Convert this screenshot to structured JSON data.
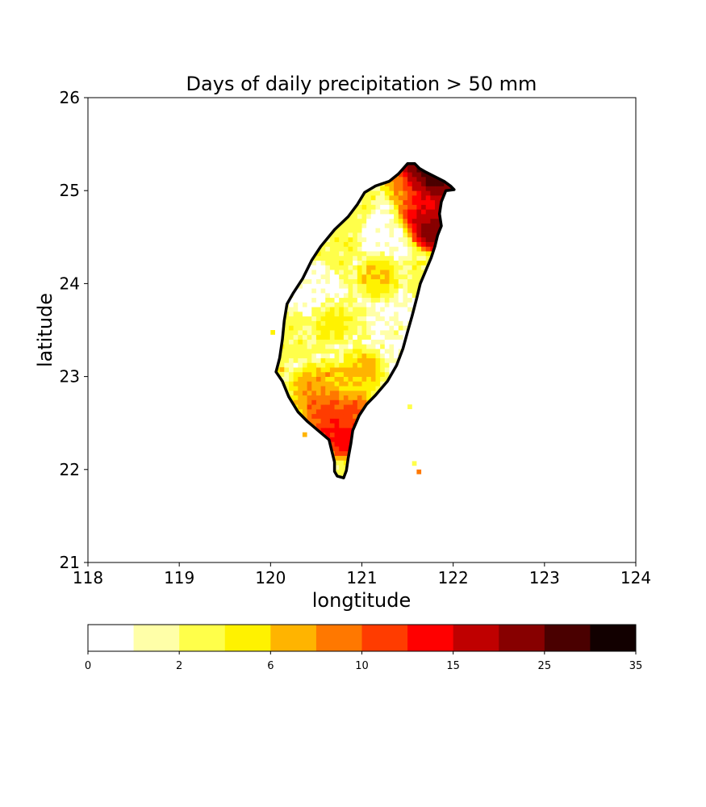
{
  "chart_data": {
    "type": "heatmap",
    "title": "Days of daily precipitation > 50 mm",
    "xlabel": "longtitude",
    "ylabel": "latitude",
    "xlim": [
      118,
      124
    ],
    "ylim": [
      21,
      26
    ],
    "x_ticks": [
      "118",
      "119",
      "120",
      "121",
      "122",
      "123",
      "124"
    ],
    "y_ticks": [
      "21",
      "22",
      "23",
      "24",
      "25",
      "26"
    ],
    "colorbar": {
      "levels": [
        0,
        1,
        2,
        4,
        6,
        8,
        10,
        12.5,
        15,
        20,
        25,
        30,
        35
      ],
      "tick_labels": [
        "0",
        "2",
        "6",
        "10",
        "15",
        "25",
        "35"
      ],
      "tick_values": [
        0,
        2,
        6,
        10,
        15,
        25,
        35
      ],
      "colors": [
        "#ffffff",
        "#ffffa8",
        "#ffff4a",
        "#fff200",
        "#ffb400",
        "#ff7800",
        "#ff3c00",
        "#ff0000",
        "#bf0000",
        "#870000",
        "#4a0000",
        "#120000"
      ]
    },
    "coastline": [
      [
        121.5,
        25.29
      ],
      [
        121.58,
        25.29
      ],
      [
        121.63,
        25.24
      ],
      [
        121.7,
        25.2
      ],
      [
        121.8,
        25.15
      ],
      [
        121.9,
        25.1
      ],
      [
        121.97,
        25.05
      ],
      [
        122.01,
        25.01
      ],
      [
        121.92,
        25.0
      ],
      [
        121.87,
        24.88
      ],
      [
        121.85,
        24.75
      ],
      [
        121.87,
        24.62
      ],
      [
        121.83,
        24.52
      ],
      [
        121.8,
        24.4
      ],
      [
        121.76,
        24.28
      ],
      [
        121.7,
        24.14
      ],
      [
        121.64,
        24.0
      ],
      [
        121.6,
        23.84
      ],
      [
        121.55,
        23.65
      ],
      [
        121.5,
        23.48
      ],
      [
        121.45,
        23.3
      ],
      [
        121.38,
        23.12
      ],
      [
        121.28,
        22.95
      ],
      [
        121.15,
        22.8
      ],
      [
        121.05,
        22.7
      ],
      [
        120.97,
        22.58
      ],
      [
        120.9,
        22.42
      ],
      [
        120.88,
        22.28
      ],
      [
        120.85,
        22.12
      ],
      [
        120.83,
        21.99
      ],
      [
        120.8,
        21.91
      ],
      [
        120.73,
        21.93
      ],
      [
        120.7,
        21.98
      ],
      [
        120.7,
        22.08
      ],
      [
        120.67,
        22.2
      ],
      [
        120.64,
        22.32
      ],
      [
        120.52,
        22.42
      ],
      [
        120.4,
        22.52
      ],
      [
        120.3,
        22.62
      ],
      [
        120.2,
        22.78
      ],
      [
        120.13,
        22.95
      ],
      [
        120.06,
        23.05
      ],
      [
        120.1,
        23.2
      ],
      [
        120.13,
        23.4
      ],
      [
        120.15,
        23.6
      ],
      [
        120.18,
        23.78
      ],
      [
        120.25,
        23.9
      ],
      [
        120.35,
        24.05
      ],
      [
        120.45,
        24.25
      ],
      [
        120.55,
        24.4
      ],
      [
        120.7,
        24.58
      ],
      [
        120.85,
        24.72
      ],
      [
        120.95,
        24.85
      ],
      [
        121.03,
        24.98
      ],
      [
        121.15,
        25.05
      ],
      [
        121.3,
        25.1
      ],
      [
        121.4,
        25.18
      ]
    ],
    "hotspots": [
      {
        "lon": 121.62,
        "lat": 25.18,
        "days": 33
      },
      {
        "lon": 121.8,
        "lat": 25.05,
        "days": 30
      },
      {
        "lon": 121.7,
        "lat": 24.85,
        "days": 14
      },
      {
        "lon": 121.78,
        "lat": 24.58,
        "days": 30
      },
      {
        "lon": 121.6,
        "lat": 24.7,
        "days": 16
      },
      {
        "lon": 121.45,
        "lat": 25.05,
        "days": 9
      },
      {
        "lon": 120.52,
        "lat": 22.6,
        "days": 12
      },
      {
        "lon": 120.65,
        "lat": 22.45,
        "days": 14
      },
      {
        "lon": 120.8,
        "lat": 22.32,
        "days": 16
      },
      {
        "lon": 120.85,
        "lat": 22.6,
        "days": 12
      },
      {
        "lon": 120.4,
        "lat": 22.85,
        "days": 9
      },
      {
        "lon": 120.6,
        "lat": 22.9,
        "days": 8
      },
      {
        "lon": 121.0,
        "lat": 23.05,
        "days": 8
      },
      {
        "lon": 121.28,
        "lat": 24.5,
        "days": 0
      },
      {
        "lon": 121.35,
        "lat": 23.6,
        "days": 1
      },
      {
        "lon": 121.35,
        "lat": 23.25,
        "days": 1
      },
      {
        "lon": 120.45,
        "lat": 23.9,
        "days": 0
      },
      {
        "lon": 121.15,
        "lat": 24.05,
        "days": 7
      },
      {
        "lon": 120.65,
        "lat": 23.55,
        "days": 6
      }
    ],
    "islands": [
      {
        "lon": 120.0,
        "lat": 23.45,
        "days": 4
      },
      {
        "lon": 121.5,
        "lat": 22.65,
        "days": 3
      },
      {
        "lon": 121.55,
        "lat": 22.04,
        "days": 3
      },
      {
        "lon": 121.6,
        "lat": 21.95,
        "days": 8
      },
      {
        "lon": 120.35,
        "lat": 22.35,
        "days": 6
      },
      {
        "lon": 120.1,
        "lat": 23.05,
        "days": 6
      }
    ]
  }
}
